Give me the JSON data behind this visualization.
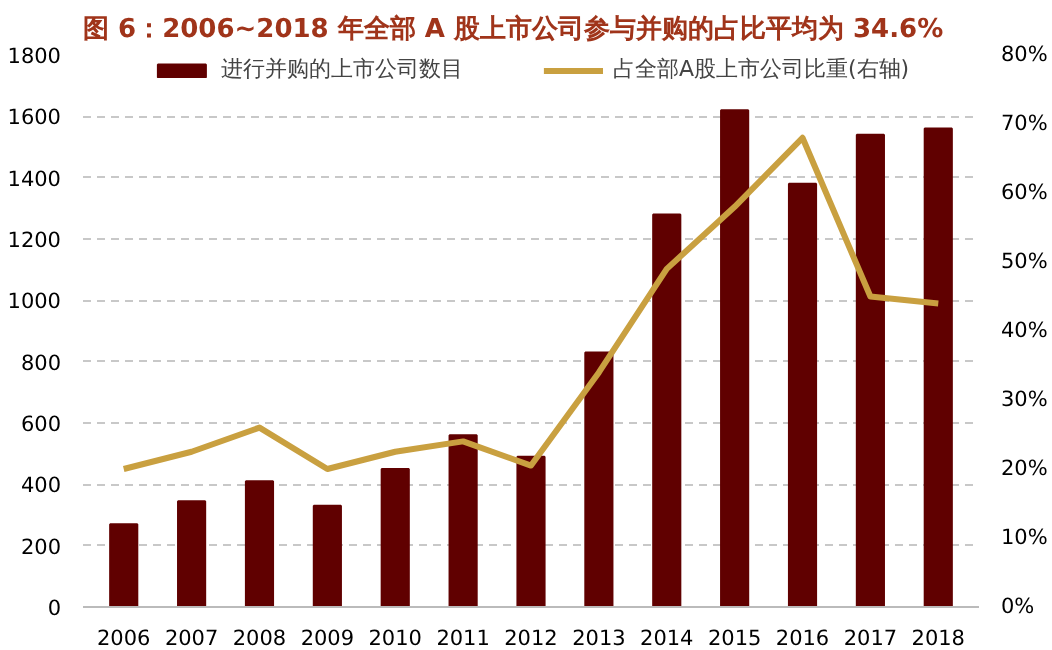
{
  "chart_data": {
    "type": "bar",
    "title": "图 6：2006~2018 年全部 A 股上市公司参与并购的占比平均为 34.6%",
    "categories": [
      "2006",
      "2007",
      "2008",
      "2009",
      "2010",
      "2011",
      "2012",
      "2013",
      "2014",
      "2015",
      "2016",
      "2017",
      "2018"
    ],
    "series": [
      {
        "name": "进行并购的上市公司数目",
        "color": "#600000",
        "values": [
          270,
          345,
          410,
          330,
          450,
          560,
          490,
          830,
          1280,
          1620,
          1380,
          1540,
          1560
        ]
      },
      {
        "name": "占全部A股上市公司比重(右轴)",
        "type": "line",
        "axis": "y2",
        "color": "#c9a040",
        "values": [
          20,
          22.5,
          26,
          20,
          22.5,
          24,
          20.5,
          34,
          49,
          58,
          68,
          45,
          44
        ]
      }
    ],
    "ylim": [
      0,
      1800
    ],
    "yticks": [
      0,
      200,
      400,
      600,
      800,
      1000,
      1200,
      1400,
      1600,
      1800
    ],
    "y2lim": [
      0,
      80
    ],
    "y2ticks": [
      {
        "value": 0,
        "label": "0%"
      },
      {
        "value": 10,
        "label": "10%"
      },
      {
        "value": 20,
        "label": "20%"
      },
      {
        "value": 30,
        "label": "30%"
      },
      {
        "value": 40,
        "label": "40%"
      },
      {
        "value": 50,
        "label": "50%"
      },
      {
        "value": 60,
        "label": "60%"
      },
      {
        "value": 70,
        "label": "70%"
      },
      {
        "value": 80,
        "label": "80%"
      }
    ],
    "grid": "y",
    "legend": "top"
  }
}
